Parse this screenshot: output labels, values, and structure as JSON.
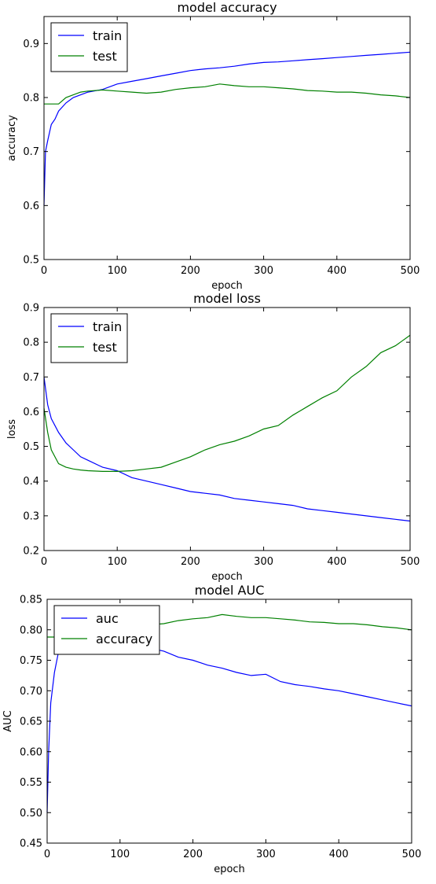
{
  "chart_data": [
    {
      "type": "line",
      "title": "model accuracy",
      "xlabel": "epoch",
      "ylabel": "accuracy",
      "xlim": [
        0,
        500
      ],
      "ylim": [
        0.5,
        0.95
      ],
      "xticks": [
        "0",
        "100",
        "200",
        "300",
        "400",
        "500"
      ],
      "yticks": [
        "0.5",
        "0.6",
        "0.7",
        "0.8",
        "0.9"
      ],
      "legend": "top-left",
      "series": [
        {
          "name": "train",
          "color": "#0000ff",
          "x": [
            0,
            2,
            5,
            10,
            15,
            20,
            30,
            40,
            50,
            60,
            80,
            100,
            120,
            140,
            160,
            180,
            200,
            220,
            240,
            260,
            280,
            300,
            320,
            340,
            360,
            380,
            400,
            420,
            440,
            460,
            480,
            500
          ],
          "y": [
            0.6,
            0.7,
            0.72,
            0.75,
            0.76,
            0.775,
            0.79,
            0.8,
            0.805,
            0.81,
            0.815,
            0.825,
            0.83,
            0.835,
            0.84,
            0.845,
            0.85,
            0.853,
            0.855,
            0.858,
            0.862,
            0.865,
            0.866,
            0.868,
            0.87,
            0.872,
            0.874,
            0.876,
            0.878,
            0.88,
            0.882,
            0.884
          ]
        },
        {
          "name": "test",
          "color": "#008000",
          "x": [
            0,
            20,
            30,
            40,
            50,
            60,
            80,
            100,
            120,
            140,
            160,
            180,
            200,
            220,
            240,
            260,
            280,
            300,
            320,
            340,
            360,
            380,
            400,
            420,
            440,
            460,
            480,
            500
          ],
          "y": [
            0.788,
            0.788,
            0.8,
            0.805,
            0.81,
            0.812,
            0.814,
            0.812,
            0.81,
            0.808,
            0.81,
            0.815,
            0.818,
            0.82,
            0.825,
            0.822,
            0.82,
            0.82,
            0.818,
            0.816,
            0.813,
            0.812,
            0.81,
            0.81,
            0.808,
            0.805,
            0.803,
            0.8
          ]
        }
      ]
    },
    {
      "type": "line",
      "title": "model loss",
      "xlabel": "epoch",
      "ylabel": "loss",
      "xlim": [
        0,
        500
      ],
      "ylim": [
        0.2,
        0.9
      ],
      "xticks": [
        "0",
        "100",
        "200",
        "300",
        "400",
        "500"
      ],
      "yticks": [
        "0.2",
        "0.3",
        "0.4",
        "0.5",
        "0.6",
        "0.7",
        "0.8",
        "0.9"
      ],
      "legend": "top-left",
      "series": [
        {
          "name": "train",
          "color": "#0000ff",
          "x": [
            0,
            5,
            10,
            20,
            30,
            40,
            50,
            60,
            80,
            100,
            120,
            140,
            160,
            180,
            200,
            220,
            240,
            260,
            280,
            300,
            320,
            340,
            360,
            380,
            400,
            420,
            440,
            460,
            480,
            500
          ],
          "y": [
            0.7,
            0.62,
            0.58,
            0.54,
            0.51,
            0.49,
            0.47,
            0.46,
            0.44,
            0.43,
            0.41,
            0.4,
            0.39,
            0.38,
            0.37,
            0.365,
            0.36,
            0.35,
            0.345,
            0.34,
            0.335,
            0.33,
            0.32,
            0.315,
            0.31,
            0.305,
            0.3,
            0.295,
            0.29,
            0.285
          ]
        },
        {
          "name": "test",
          "color": "#008000",
          "x": [
            0,
            5,
            10,
            20,
            30,
            40,
            50,
            60,
            80,
            100,
            120,
            140,
            160,
            180,
            200,
            220,
            240,
            260,
            280,
            300,
            320,
            340,
            360,
            380,
            400,
            420,
            440,
            460,
            480,
            500
          ],
          "y": [
            0.61,
            0.54,
            0.49,
            0.45,
            0.44,
            0.435,
            0.432,
            0.43,
            0.428,
            0.428,
            0.43,
            0.435,
            0.44,
            0.455,
            0.47,
            0.49,
            0.505,
            0.515,
            0.53,
            0.55,
            0.56,
            0.59,
            0.615,
            0.64,
            0.66,
            0.7,
            0.73,
            0.77,
            0.79,
            0.82
          ]
        }
      ]
    },
    {
      "type": "line",
      "title": "model AUC",
      "xlabel": "epoch",
      "ylabel": "AUC",
      "xlim": [
        0,
        500
      ],
      "ylim": [
        0.45,
        0.85
      ],
      "xticks": [
        "0",
        "100",
        "200",
        "300",
        "400",
        "500"
      ],
      "yticks": [
        "0.45",
        "0.50",
        "0.55",
        "0.60",
        "0.65",
        "0.70",
        "0.75",
        "0.80",
        "0.85"
      ],
      "legend": "top-left",
      "series": [
        {
          "name": "auc",
          "color": "#0000ff",
          "x": [
            0,
            2,
            5,
            10,
            15,
            20,
            30,
            40,
            60,
            80,
            100,
            120,
            140,
            160,
            180,
            200,
            220,
            240,
            260,
            280,
            300,
            320,
            340,
            360,
            380,
            400,
            420,
            440,
            460,
            480,
            500
          ],
          "y": [
            0.5,
            0.6,
            0.68,
            0.73,
            0.76,
            0.77,
            0.775,
            0.775,
            0.775,
            0.775,
            0.775,
            0.773,
            0.77,
            0.765,
            0.755,
            0.75,
            0.742,
            0.737,
            0.73,
            0.725,
            0.727,
            0.715,
            0.71,
            0.707,
            0.703,
            0.7,
            0.695,
            0.69,
            0.685,
            0.68,
            0.675
          ]
        },
        {
          "name": "accuracy",
          "color": "#008000",
          "x": [
            0,
            20,
            30,
            40,
            50,
            60,
            80,
            100,
            120,
            140,
            160,
            180,
            200,
            220,
            240,
            260,
            280,
            300,
            320,
            340,
            360,
            380,
            400,
            420,
            440,
            460,
            480,
            500
          ],
          "y": [
            0.788,
            0.788,
            0.8,
            0.805,
            0.81,
            0.812,
            0.814,
            0.812,
            0.81,
            0.808,
            0.81,
            0.815,
            0.818,
            0.82,
            0.825,
            0.822,
            0.82,
            0.82,
            0.818,
            0.816,
            0.813,
            0.812,
            0.81,
            0.81,
            0.808,
            0.805,
            0.803,
            0.8
          ]
        }
      ]
    }
  ]
}
